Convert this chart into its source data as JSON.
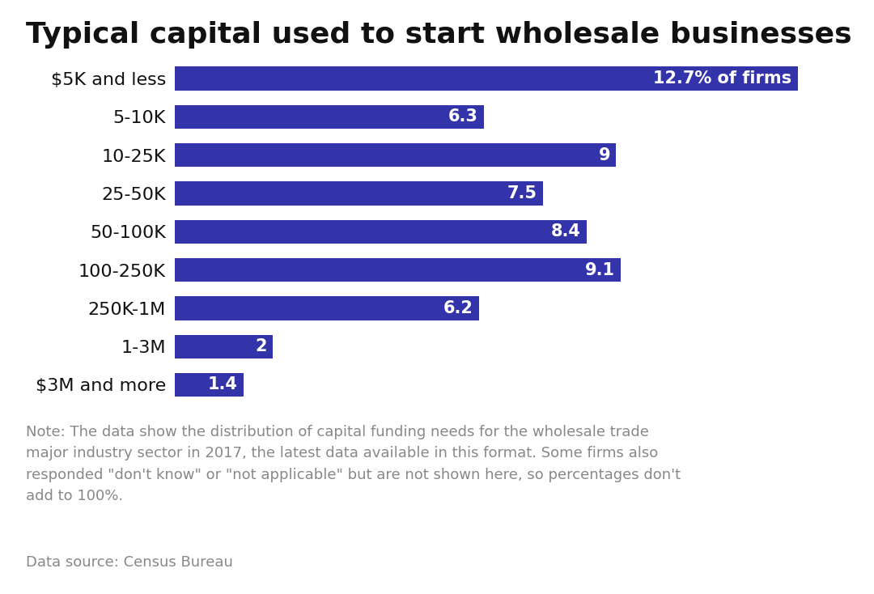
{
  "title": "Typical capital used to start wholesale businesses",
  "categories": [
    "$5K and less",
    "5-10K",
    "10-25K",
    "25-50K",
    "50-100K",
    "100-250K",
    "250K-1M",
    "1-3M",
    "$3M and more"
  ],
  "values": [
    12.7,
    6.3,
    9.0,
    7.5,
    8.4,
    9.1,
    6.2,
    2.0,
    1.4
  ],
  "bar_color": "#3333aa",
  "text_color": "#ffffff",
  "label_color": "#111111",
  "title_color": "#111111",
  "note_color": "#888888",
  "source_color": "#888888",
  "background_color": "#ffffff",
  "bar_labels": [
    "12.7% of firms",
    "6.3",
    "9",
    "7.5",
    "8.4",
    "9.1",
    "6.2",
    "2",
    "1.4"
  ],
  "note_text": "Note: The data show the distribution of capital funding needs for the wholesale trade\nmajor industry sector in 2017, the latest data available in this format. Some firms also\nresponded \"don't know\" or \"not applicable\" but are not shown here, so percentages don't\nadd to 100%.",
  "source_text": "Data source: Census Bureau",
  "title_fontsize": 26,
  "label_fontsize": 16,
  "bar_label_fontsize": 15,
  "note_fontsize": 13,
  "source_fontsize": 13,
  "xlim": [
    0,
    13.9
  ]
}
